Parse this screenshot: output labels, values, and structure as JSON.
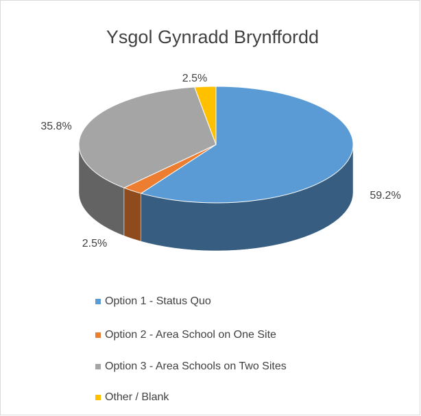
{
  "chart_data": {
    "type": "pie",
    "title": "Ysgol Gynradd Brynffordd",
    "categories": [
      "Option 1 - Status Quo",
      "Option 2 - Area School on One Site",
      "Option 3 - Area Schools on Two Sites",
      "Other / Blank"
    ],
    "values": [
      59.2,
      2.5,
      35.8,
      2.5
    ],
    "value_labels": [
      "59.2%",
      "2.5%",
      "35.8%",
      "2.5%"
    ],
    "colors": [
      "#5b9bd5",
      "#ed7d31",
      "#a5a5a5",
      "#ffc000"
    ],
    "legend": "bottom"
  }
}
